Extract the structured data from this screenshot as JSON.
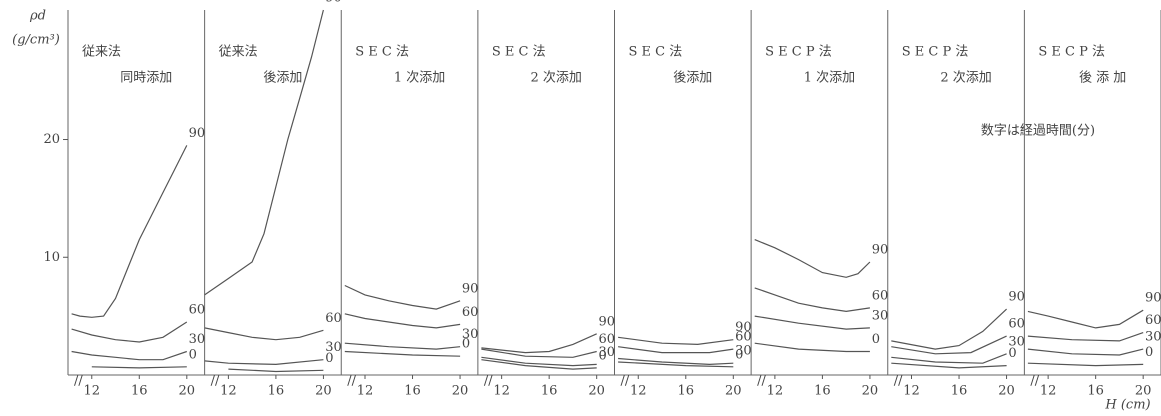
{
  "axis": {
    "ylabel": "ρd",
    "yunit": "(g/cm³)",
    "ylim": [
      0,
      31
    ],
    "yticks": [
      10,
      20
    ],
    "xlim": [
      10,
      21.5
    ],
    "xticks": [
      12,
      16,
      20
    ],
    "xlabel": "H (cm)"
  },
  "note": "数字は経過時間(分)",
  "chart_data": [
    {
      "type": "line",
      "title": "従来法",
      "subtitle": "同時添加",
      "series": [
        {
          "name": "90",
          "x": [
            10.3,
            11,
            12,
            13,
            14,
            15,
            16,
            17,
            18,
            19,
            20
          ],
          "values": [
            5.2,
            5,
            4.9,
            5,
            6.5,
            9,
            11.5,
            13.5,
            15.5,
            17.5,
            19.5
          ]
        },
        {
          "name": "60",
          "x": [
            10.3,
            12,
            14,
            16,
            18,
            20
          ],
          "values": [
            3.9,
            3.4,
            3,
            2.8,
            3.2,
            4.5
          ]
        },
        {
          "name": "30",
          "x": [
            10.3,
            12,
            14,
            16,
            18,
            20
          ],
          "values": [
            2,
            1.7,
            1.5,
            1.3,
            1.3,
            2
          ]
        },
        {
          "name": "0",
          "x": [
            12,
            16,
            20
          ],
          "values": [
            0.7,
            0.6,
            0.7
          ]
        }
      ]
    },
    {
      "type": "line",
      "title": "従来法",
      "subtitle": "後添加",
      "series": [
        {
          "name": "90",
          "x": [
            10,
            12,
            14,
            15,
            16,
            17,
            18,
            19,
            20
          ],
          "values": [
            6.8,
            8.2,
            9.6,
            12,
            16,
            20,
            23.5,
            27,
            31
          ]
        },
        {
          "name": "60",
          "x": [
            10,
            12,
            14,
            16,
            18,
            20
          ],
          "values": [
            4,
            3.6,
            3.2,
            3,
            3.2,
            3.8
          ]
        },
        {
          "name": "30",
          "x": [
            10,
            12,
            16,
            20
          ],
          "values": [
            1.2,
            1,
            0.9,
            1.3
          ]
        },
        {
          "name": "0",
          "x": [
            12,
            16,
            20
          ],
          "values": [
            0.5,
            0.3,
            0.4
          ]
        }
      ]
    },
    {
      "type": "line",
      "title": "S E C 法",
      "subtitle": "1 次添加",
      "series": [
        {
          "name": "90",
          "x": [
            10.3,
            12,
            14,
            16,
            18,
            20
          ],
          "values": [
            7.6,
            6.8,
            6.3,
            5.9,
            5.6,
            6.3
          ]
        },
        {
          "name": "60",
          "x": [
            10.3,
            12,
            16,
            18,
            20
          ],
          "values": [
            5.2,
            4.8,
            4.2,
            4,
            4.3
          ]
        },
        {
          "name": "30",
          "x": [
            10.3,
            14,
            18,
            20
          ],
          "values": [
            2.7,
            2.4,
            2.2,
            2.4
          ]
        },
        {
          "name": "0",
          "x": [
            10.3,
            16,
            20
          ],
          "values": [
            2,
            1.7,
            1.6
          ]
        }
      ]
    },
    {
      "type": "line",
      "title": "S E C 法",
      "subtitle": "2 次添加",
      "series": [
        {
          "name": "90",
          "x": [
            10.3,
            14,
            16,
            18,
            20
          ],
          "values": [
            2.3,
            1.9,
            2,
            2.6,
            3.5
          ]
        },
        {
          "name": "60",
          "x": [
            10.3,
            14,
            18,
            20
          ],
          "values": [
            2.2,
            1.6,
            1.5,
            2
          ]
        },
        {
          "name": "30",
          "x": [
            10.3,
            14,
            18,
            20
          ],
          "values": [
            1.5,
            1,
            0.8,
            0.9
          ]
        },
        {
          "name": "0",
          "x": [
            10.3,
            14,
            18,
            20
          ],
          "values": [
            1.3,
            0.8,
            0.5,
            0.6
          ]
        }
      ]
    },
    {
      "type": "line",
      "title": "S E C 法",
      "subtitle": "後添加",
      "series": [
        {
          "name": "90",
          "x": [
            10.3,
            14,
            17,
            20
          ],
          "values": [
            3.2,
            2.7,
            2.6,
            3
          ]
        },
        {
          "name": "60",
          "x": [
            10.3,
            14,
            18,
            20
          ],
          "values": [
            2.4,
            1.9,
            1.9,
            2.2
          ]
        },
        {
          "name": "30",
          "x": [
            10.3,
            14,
            18,
            20
          ],
          "values": [
            1.4,
            1.1,
            0.9,
            1
          ]
        },
        {
          "name": "0",
          "x": [
            10.3,
            16,
            20
          ],
          "values": [
            1.1,
            0.8,
            0.7
          ]
        }
      ]
    },
    {
      "type": "line",
      "title": "S E C P 法",
      "subtitle": "1 次添加",
      "series": [
        {
          "name": "90",
          "x": [
            10.3,
            12,
            14,
            16,
            18,
            19,
            20
          ],
          "values": [
            11.5,
            10.8,
            9.8,
            8.7,
            8.3,
            8.6,
            9.6
          ]
        },
        {
          "name": "60",
          "x": [
            10.3,
            12,
            14,
            16,
            18,
            20
          ],
          "values": [
            7.4,
            6.8,
            6.1,
            5.7,
            5.4,
            5.7
          ]
        },
        {
          "name": "30",
          "x": [
            10.3,
            14,
            18,
            20
          ],
          "values": [
            5,
            4.4,
            3.9,
            4
          ]
        },
        {
          "name": "0",
          "x": [
            10.3,
            14,
            18,
            20
          ],
          "values": [
            2.7,
            2.2,
            2,
            2
          ]
        }
      ]
    },
    {
      "type": "line",
      "title": "S E C P 法",
      "subtitle": "2 次添加",
      "series": [
        {
          "name": "90",
          "x": [
            10.3,
            14,
            16,
            18,
            20
          ],
          "values": [
            2.9,
            2.2,
            2.5,
            3.7,
            5.6
          ]
        },
        {
          "name": "60",
          "x": [
            10.3,
            14,
            17,
            20
          ],
          "values": [
            2.4,
            1.8,
            1.9,
            3.3
          ]
        },
        {
          "name": "30",
          "x": [
            10.3,
            14,
            18,
            20
          ],
          "values": [
            1.5,
            1.1,
            1,
            1.8
          ]
        },
        {
          "name": "0",
          "x": [
            10.3,
            16,
            20
          ],
          "values": [
            1,
            0.6,
            0.8
          ]
        }
      ]
    },
    {
      "type": "line",
      "title": "S E C P 法",
      "subtitle": "後 添 加",
      "series": [
        {
          "name": "90",
          "x": [
            10.3,
            12,
            14,
            16,
            18,
            20
          ],
          "values": [
            5.4,
            5,
            4.5,
            4,
            4.3,
            5.5
          ]
        },
        {
          "name": "60",
          "x": [
            10.3,
            14,
            18,
            20
          ],
          "values": [
            3.3,
            3,
            2.9,
            3.6
          ]
        },
        {
          "name": "30",
          "x": [
            10.3,
            14,
            18,
            20
          ],
          "values": [
            2.2,
            1.8,
            1.7,
            2.2
          ]
        },
        {
          "name": "0",
          "x": [
            10.3,
            16,
            20
          ],
          "values": [
            1,
            0.8,
            0.9
          ]
        }
      ]
    }
  ]
}
